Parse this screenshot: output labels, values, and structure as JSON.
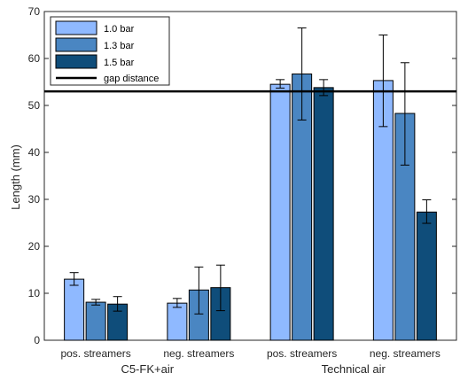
{
  "chart_data": {
    "type": "bar",
    "ylabel": "Length (mm)",
    "ylim": [
      0,
      70
    ],
    "yticks": [
      0,
      10,
      20,
      30,
      40,
      50,
      60,
      70
    ],
    "categories": [
      "pos. streamers",
      "neg. streamers",
      "pos. streamers",
      "neg. streamers"
    ],
    "category_groups": [
      {
        "label": "C5-FK+air",
        "categories": [
          0,
          1
        ]
      },
      {
        "label": "Technical air",
        "categories": [
          2,
          3
        ]
      }
    ],
    "series": [
      {
        "name": "1.0 bar",
        "color": "#8fb9ff",
        "values": [
          13.0,
          7.9,
          54.5,
          55.3
        ],
        "err_low": [
          11.7,
          7.0,
          53.7,
          45.5
        ],
        "err_high": [
          14.4,
          8.9,
          55.5,
          65.0
        ]
      },
      {
        "name": "1.3 bar",
        "color": "#4a86c2",
        "values": [
          8.1,
          10.7,
          56.7,
          48.3
        ],
        "err_low": [
          7.5,
          5.6,
          46.9,
          37.3
        ],
        "err_high": [
          8.7,
          15.6,
          66.5,
          59.1
        ]
      },
      {
        "name": "1.5 bar",
        "color": "#0f4d7a",
        "values": [
          7.7,
          11.2,
          53.8,
          27.3
        ],
        "err_low": [
          6.2,
          6.3,
          52.1,
          24.9
        ],
        "err_high": [
          9.3,
          16.0,
          55.5,
          29.9
        ]
      }
    ],
    "reference_line": {
      "name": "gap distance",
      "value": 53.0,
      "color": "#000000"
    },
    "legend": {
      "position": "top-left"
    },
    "grid": false
  }
}
